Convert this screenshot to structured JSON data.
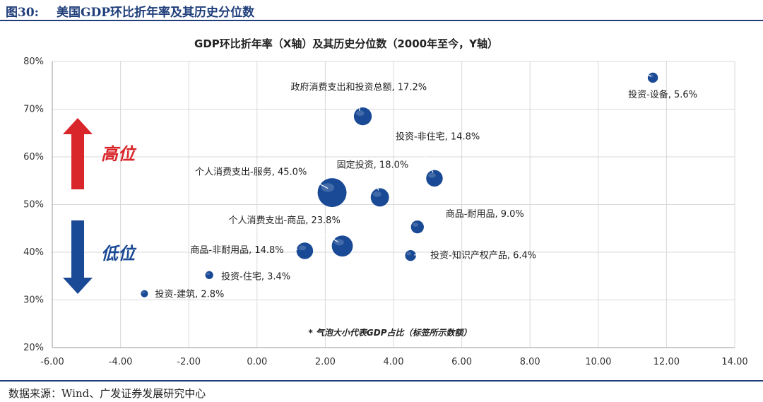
{
  "figure": {
    "number": "图30:",
    "title": "美国GDP环比折年率及其历史分位数",
    "source": "数据来源：Wind、广发证券发展研究中心"
  },
  "colors": {
    "bubble": "#1a4a95",
    "up_arrow": "#d9262a",
    "down_arrow": "#1a4a95",
    "frame": "#1f3e7a"
  },
  "chart_data": {
    "type": "scatter",
    "title": "GDP环比折年率（X轴）及其历史分位数（2000年至今，Y轴）",
    "note": "* 气泡大小代表GDP占比（标签所示数额）",
    "xlim": [
      -6,
      14
    ],
    "ylim": [
      20,
      80
    ],
    "x_ticks": [
      "-6.00",
      "-4.00",
      "-2.00",
      "0.00",
      "2.00",
      "4.00",
      "6.00",
      "8.00",
      "10.00",
      "12.00",
      "14.00"
    ],
    "y_ticks": [
      "20%",
      "30%",
      "40%",
      "50%",
      "60%",
      "70%",
      "80%"
    ],
    "grid": true,
    "annotations": {
      "high": "高位",
      "low": "低位"
    },
    "points": [
      {
        "label": "政府消费支出和投资总额, 17.2%",
        "x": 3.1,
        "y": 68.5,
        "share": 17.2
      },
      {
        "label": "投资-设备, 5.6%",
        "x": 11.6,
        "y": 76.6,
        "share": 5.6
      },
      {
        "label": "投资-非住宅, 14.8%",
        "x": 5.2,
        "y": 55.5,
        "share": 14.8
      },
      {
        "label": "固定投资, 18.0%",
        "x": 3.6,
        "y": 51.5,
        "share": 18.0
      },
      {
        "label": "个人消费支出-服务, 45.0%",
        "x": 2.2,
        "y": 52.5,
        "share": 45.0
      },
      {
        "label": "商品-耐用品, 9.0%",
        "x": 4.7,
        "y": 45.3,
        "share": 9.0
      },
      {
        "label": "个人消费支出-商品, 23.8%",
        "x": 2.5,
        "y": 41.3,
        "share": 23.8
      },
      {
        "label": "商品-非耐用品, 14.8%",
        "x": 1.4,
        "y": 40.3,
        "share": 14.8
      },
      {
        "label": "投资-知识产权产品, 6.4%",
        "x": 4.5,
        "y": 39.3,
        "share": 6.4
      },
      {
        "label": "投资-住宅, 3.4%",
        "x": -1.4,
        "y": 35.2,
        "share": 3.4
      },
      {
        "label": "投资-建筑, 2.8%",
        "x": -3.3,
        "y": 31.3,
        "share": 2.8
      }
    ]
  }
}
